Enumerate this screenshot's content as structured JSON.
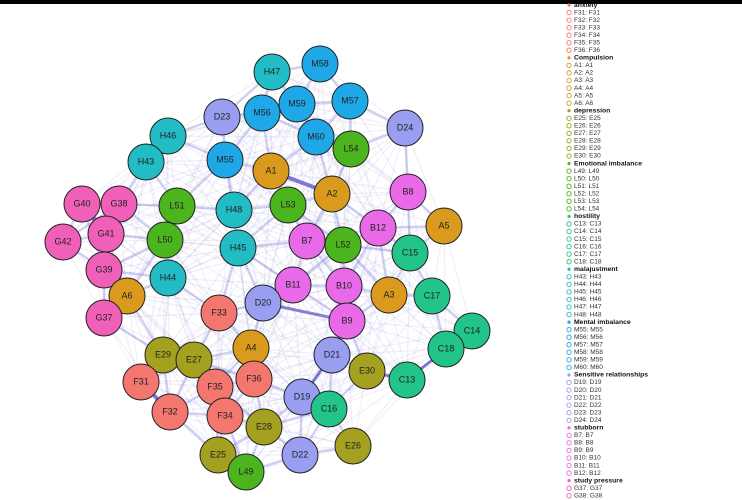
{
  "network": {
    "nodes": [
      {
        "label": "H47",
        "color": "#22bcc4"
      },
      {
        "label": "M58",
        "color": "#1fa8e8"
      },
      {
        "label": "D23",
        "color": "#9a9ef0"
      },
      {
        "label": "M56",
        "color": "#1fa8e8"
      },
      {
        "label": "M59",
        "color": "#1fa8e8"
      },
      {
        "label": "M57",
        "color": "#1fa8e8"
      },
      {
        "label": "D24",
        "color": "#9a9ef0"
      },
      {
        "label": "H46",
        "color": "#22bcc4"
      },
      {
        "label": "M60",
        "color": "#1fa8e8"
      },
      {
        "label": "L54",
        "color": "#4cb41d"
      },
      {
        "label": "H43",
        "color": "#22bcc4"
      },
      {
        "label": "M55",
        "color": "#1fa8e8"
      },
      {
        "label": "A1",
        "color": "#d99a1d"
      },
      {
        "label": "A2",
        "color": "#d99a1d"
      },
      {
        "label": "B8",
        "color": "#e96ae8"
      },
      {
        "label": "G40",
        "color": "#f060b8"
      },
      {
        "label": "G38",
        "color": "#f060b8"
      },
      {
        "label": "L51",
        "color": "#4cb41d"
      },
      {
        "label": "H48",
        "color": "#22bcc4"
      },
      {
        "label": "L53",
        "color": "#4cb41d"
      },
      {
        "label": "B12",
        "color": "#e96ae8"
      },
      {
        "label": "A5",
        "color": "#d99a1d"
      },
      {
        "label": "G42",
        "color": "#f060b8"
      },
      {
        "label": "G41",
        "color": "#f060b8"
      },
      {
        "label": "L50",
        "color": "#4cb41d"
      },
      {
        "label": "H45",
        "color": "#22bcc4"
      },
      {
        "label": "B7",
        "color": "#e96ae8"
      },
      {
        "label": "L52",
        "color": "#4cb41d"
      },
      {
        "label": "C15",
        "color": "#22c48a"
      },
      {
        "label": "G39",
        "color": "#f060b8"
      },
      {
        "label": "H44",
        "color": "#22bcc4"
      },
      {
        "label": "B11",
        "color": "#e96ae8"
      },
      {
        "label": "B10",
        "color": "#e96ae8"
      },
      {
        "label": "A3",
        "color": "#d99a1d"
      },
      {
        "label": "C17",
        "color": "#22c48a"
      },
      {
        "label": "A6",
        "color": "#d99a1d"
      },
      {
        "label": "D20",
        "color": "#9a9ef0"
      },
      {
        "label": "F33",
        "color": "#f4776f"
      },
      {
        "label": "B9",
        "color": "#e96ae8"
      },
      {
        "label": "C14",
        "color": "#22c48a"
      },
      {
        "label": "G37",
        "color": "#f060b8"
      },
      {
        "label": "A4",
        "color": "#d99a1d"
      },
      {
        "label": "D21",
        "color": "#9a9ef0"
      },
      {
        "label": "C18",
        "color": "#22c48a"
      },
      {
        "label": "E29",
        "color": "#a3a11f"
      },
      {
        "label": "E27",
        "color": "#a3a11f"
      },
      {
        "label": "E30",
        "color": "#a3a11f"
      },
      {
        "label": "F31",
        "color": "#f4776f"
      },
      {
        "label": "F35",
        "color": "#f4776f"
      },
      {
        "label": "F36",
        "color": "#f4776f"
      },
      {
        "label": "C13",
        "color": "#22c48a"
      },
      {
        "label": "D19",
        "color": "#9a9ef0"
      },
      {
        "label": "C16",
        "color": "#22c48a"
      },
      {
        "label": "F32",
        "color": "#f4776f"
      },
      {
        "label": "F34",
        "color": "#f4776f"
      },
      {
        "label": "E28",
        "color": "#a3a11f"
      },
      {
        "label": "E25",
        "color": "#a3a11f"
      },
      {
        "label": "D22",
        "color": "#9a9ef0"
      },
      {
        "label": "E26",
        "color": "#a3a11f"
      },
      {
        "label": "L49",
        "color": "#4cb41d"
      }
    ]
  },
  "legend": {
    "groups": [
      {
        "name": "anxiety",
        "color": "#f4776f",
        "items": [
          "F31: F31",
          "F32: F32",
          "F33: F33",
          "F34: F34",
          "F35: F35",
          "F36: F36"
        ]
      },
      {
        "name": "Compulsion",
        "color": "#d99a1d",
        "items": [
          "A1: A1",
          "A2: A2",
          "A3: A3",
          "A4: A4",
          "A5: A5",
          "A6: A6"
        ]
      },
      {
        "name": "depression",
        "color": "#a3a11f",
        "items": [
          "E25: E25",
          "E26: E26",
          "E27: E27",
          "E28: E28",
          "E29: E29",
          "E30: E30"
        ]
      },
      {
        "name": "Emotional imbalance",
        "color": "#4cb41d",
        "items": [
          "L49: L49",
          "L50: L50",
          "L51: L51",
          "L52: L52",
          "L53: L53",
          "L54: L54"
        ]
      },
      {
        "name": "hostility",
        "color": "#22c48a",
        "items": [
          "C13: C13",
          "C14: C14",
          "C15: C15",
          "C16: C16",
          "C17: C17",
          "C18: C18"
        ]
      },
      {
        "name": "malajustment",
        "color": "#22bcc4",
        "items": [
          "H43: H43",
          "H44: H44",
          "H45: H45",
          "H46: H46",
          "H47: H47",
          "H48: H48"
        ]
      },
      {
        "name": "Mental imbalance",
        "color": "#1fa8e8",
        "items": [
          "M55: M55",
          "M56: M56",
          "M57: M57",
          "M58: M58",
          "M59: M59",
          "M60: M60"
        ]
      },
      {
        "name": "Sensitive relationships",
        "color": "#9a9ef0",
        "items": [
          "D19: D19",
          "D20: D20",
          "D21: D21",
          "D22: D22",
          "D23: D23",
          "D24: D24"
        ]
      },
      {
        "name": "stubborn",
        "color": "#e96ae8",
        "items": [
          "B7: B7",
          "B8: B8",
          "B9: B9",
          "B10: B10",
          "B11: B11",
          "B12: B12"
        ]
      },
      {
        "name": "study pressure",
        "color": "#f060b8",
        "items": [
          "G37: G37",
          "G38: G38"
        ]
      }
    ]
  }
}
